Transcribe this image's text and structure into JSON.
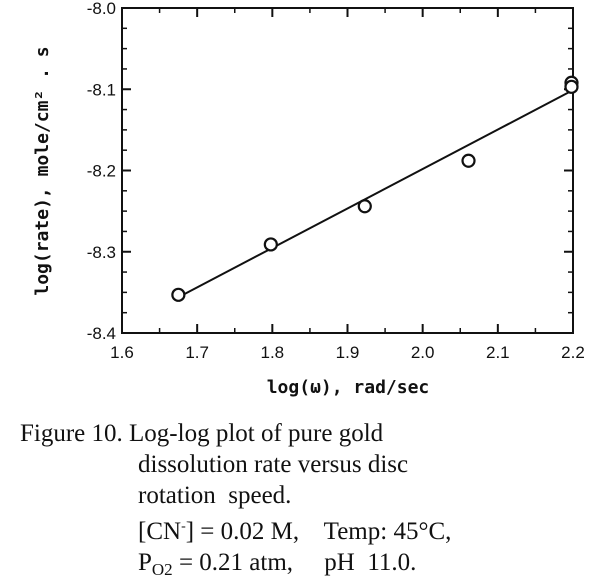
{
  "chart_data": {
    "type": "scatter",
    "xlabel": "log(ω),  rad/sec",
    "ylabel": "log(rate),  mole/cm² . s",
    "xlim": [
      1.6,
      2.2
    ],
    "ylim": [
      -8.4,
      -8.0
    ],
    "x_ticks": [
      "1.6",
      "1.7",
      "1.8",
      "1.9",
      "2.0",
      "2.1",
      "2.2"
    ],
    "y_ticks": [
      "-8.0",
      "-8.1",
      "-8.2",
      "-8.3",
      "-8.4"
    ],
    "grid": false,
    "series": [
      {
        "marker": "open-circle",
        "points": [
          {
            "x": 1.675,
            "y": -8.353
          },
          {
            "x": 1.798,
            "y": -8.291
          },
          {
            "x": 1.923,
            "y": -8.244
          },
          {
            "x": 2.061,
            "y": -8.188
          },
          {
            "x": 2.198,
            "y": -8.092
          },
          {
            "x": 2.198,
            "y": -8.097
          }
        ]
      },
      {
        "style": "fit-line",
        "points": [
          {
            "x": 1.675,
            "y": -8.356
          },
          {
            "x": 2.198,
            "y": -8.102
          }
        ]
      }
    ]
  },
  "caption": {
    "line1": "Figure 10. Log-log plot of pure gold",
    "line2": "dissolution rate versus disc",
    "line3": "rotation  speed.",
    "line4_a": "[CN",
    "line4_sup": "-",
    "line4_b": "] = 0.02 M,    Temp: 45°C,",
    "line5_a": "P",
    "line5_sub": "O2",
    "line5_b": " = 0.21 atm,     pH  11.0."
  }
}
